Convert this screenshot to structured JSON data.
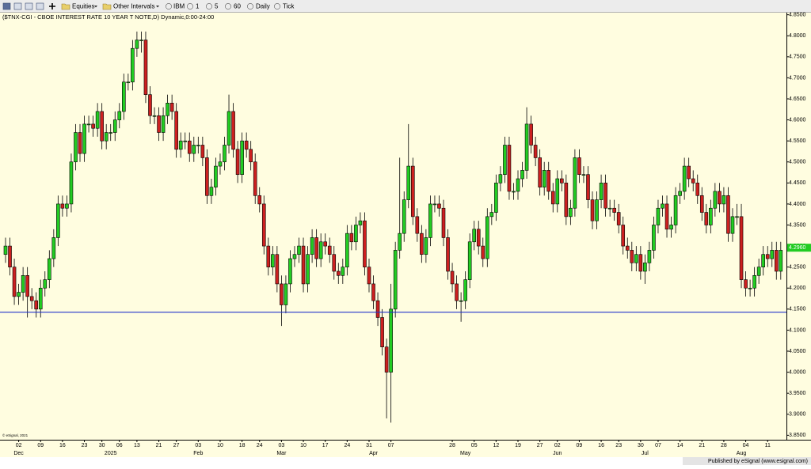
{
  "toolbar": {
    "items": [
      "Equities",
      "Other Intervals",
      "IBM",
      "1",
      "5",
      "60",
      "Daily",
      "Tick"
    ]
  },
  "footer": {
    "copyright": "© eSignal, 2021",
    "published": "Published by eSignal (www.esignal.com)"
  },
  "chart_data": {
    "type": "candlestick",
    "title": "($TNX-CGI - CBOE INTEREST RATE 10 YEAR T NOTE,D) Dynamic,0:00-24:00",
    "up_color": "#22cc22",
    "down_color": "#cc2020",
    "ylim": [
      3.845,
      4.855
    ],
    "yticks": [
      {
        "value": 3.85,
        "label": "3.8500"
      },
      {
        "value": 3.9,
        "label": "3.9000"
      },
      {
        "value": 3.95,
        "label": "3.9500"
      },
      {
        "value": 4.0,
        "label": "4.0000"
      },
      {
        "value": 4.05,
        "label": "4.0500"
      },
      {
        "value": 4.1,
        "label": "4.1000"
      },
      {
        "value": 4.15,
        "label": "4.1500"
      },
      {
        "value": 4.2,
        "label": "4.2000"
      },
      {
        "value": 4.25,
        "label": "4.2500"
      },
      {
        "value": 4.3,
        "label": "4.3000"
      },
      {
        "value": 4.35,
        "label": "4.3500"
      },
      {
        "value": 4.4,
        "label": "4.4000"
      },
      {
        "value": 4.45,
        "label": "4.4500"
      },
      {
        "value": 4.5,
        "label": "4.5000"
      },
      {
        "value": 4.55,
        "label": "4.5500"
      },
      {
        "value": 4.6,
        "label": "4.6000"
      },
      {
        "value": 4.65,
        "label": "4.6500"
      },
      {
        "value": 4.7,
        "label": "4.7000"
      },
      {
        "value": 4.75,
        "label": "4.7500"
      },
      {
        "value": 4.8,
        "label": "4.8000"
      },
      {
        "value": 4.85,
        "label": "4.8500"
      }
    ],
    "reference_line": {
      "value": 4.1425,
      "color": "#2233cc"
    },
    "last_price": {
      "value": 4.296,
      "label": "4.2960"
    },
    "categories": [
      null,
      null,
      null,
      "02",
      null,
      null,
      null,
      null,
      "09",
      null,
      null,
      null,
      null,
      "16",
      null,
      null,
      null,
      null,
      "23",
      null,
      null,
      null,
      "30",
      null,
      null,
      null,
      "06",
      null,
      null,
      null,
      "13",
      null,
      null,
      null,
      null,
      "21",
      null,
      null,
      null,
      "27",
      null,
      null,
      null,
      null,
      "03",
      null,
      null,
      null,
      null,
      "10",
      null,
      null,
      null,
      null,
      "18",
      null,
      null,
      null,
      "24",
      null,
      null,
      null,
      null,
      "03",
      null,
      null,
      null,
      null,
      "10",
      null,
      null,
      null,
      null,
      "17",
      null,
      null,
      null,
      null,
      "24",
      null,
      null,
      null,
      null,
      "31",
      null,
      null,
      null,
      null,
      "07",
      null,
      null,
      null,
      null,
      null,
      null,
      null,
      null,
      null,
      null,
      null,
      null,
      null,
      "28",
      null,
      null,
      null,
      null,
      "05",
      null,
      null,
      null,
      null,
      "12",
      null,
      null,
      null,
      null,
      "19",
      null,
      null,
      null,
      null,
      "27",
      null,
      null,
      null,
      "02",
      null,
      null,
      null,
      null,
      "09",
      null,
      null,
      null,
      null,
      "16",
      null,
      null,
      null,
      "23",
      null,
      null,
      null,
      null,
      "30",
      null,
      null,
      null,
      "07",
      null,
      null,
      null,
      null,
      "14",
      null,
      null,
      null,
      null,
      "21",
      null,
      null,
      null,
      null,
      "28",
      null,
      null,
      null,
      null,
      "04",
      null,
      null,
      null,
      null,
      "11",
      null,
      null,
      null
    ],
    "month_labels": [
      null,
      null,
      null,
      "Dec",
      null,
      null,
      null,
      null,
      null,
      null,
      null,
      null,
      null,
      null,
      null,
      null,
      null,
      null,
      null,
      null,
      null,
      null,
      null,
      null,
      "2025",
      null,
      null,
      null,
      null,
      null,
      null,
      null,
      null,
      null,
      null,
      null,
      null,
      null,
      null,
      null,
      null,
      null,
      null,
      null,
      "Feb",
      null,
      null,
      null,
      null,
      null,
      null,
      null,
      null,
      null,
      null,
      null,
      null,
      null,
      null,
      null,
      null,
      null,
      null,
      "Mar",
      null,
      null,
      null,
      null,
      null,
      null,
      null,
      null,
      null,
      null,
      null,
      null,
      null,
      null,
      null,
      null,
      null,
      null,
      null,
      null,
      "Apr",
      null,
      null,
      null,
      null,
      null,
      null,
      null,
      null,
      null,
      null,
      null,
      null,
      null,
      null,
      null,
      null,
      null,
      null,
      null,
      null,
      "May",
      null,
      null,
      null,
      null,
      null,
      null,
      null,
      null,
      null,
      null,
      null,
      null,
      null,
      null,
      null,
      null,
      null,
      null,
      null,
      null,
      "Jun",
      null,
      null,
      null,
      null,
      null,
      null,
      null,
      null,
      null,
      null,
      null,
      null,
      null,
      null,
      null,
      null,
      null,
      null,
      null,
      "Jul",
      null,
      null,
      null,
      null,
      null,
      null,
      null,
      null,
      null,
      null,
      null,
      null,
      null,
      null,
      null,
      null,
      null,
      null,
      null,
      null,
      null,
      "Aug",
      null,
      null,
      null,
      null,
      null,
      null,
      null,
      null,
      null
    ],
    "open": [
      4.28,
      4.3,
      4.25,
      4.18,
      4.19,
      4.23,
      4.18,
      4.17,
      4.15,
      4.2,
      4.22,
      4.27,
      4.32,
      4.4,
      4.39,
      4.4,
      4.5,
      4.57,
      4.52,
      4.59,
      4.59,
      4.58,
      4.62,
      4.55,
      4.57,
      4.57,
      4.6,
      4.62,
      4.69,
      4.69,
      4.77,
      4.79,
      4.79,
      4.66,
      4.61,
      4.61,
      4.57,
      4.61,
      4.64,
      4.62,
      4.53,
      4.55,
      4.55,
      4.52,
      4.54,
      4.54,
      4.51,
      4.42,
      4.44,
      4.49,
      4.5,
      4.54,
      4.62,
      4.53,
      4.47,
      4.55,
      4.53,
      4.5,
      4.42,
      4.4,
      4.3,
      4.25,
      4.28,
      4.21,
      4.16,
      4.21,
      4.27,
      4.28,
      4.3,
      4.21,
      4.28,
      4.32,
      4.27,
      4.31,
      4.3,
      4.28,
      4.24,
      4.23,
      4.25,
      4.33,
      4.31,
      4.35,
      4.36,
      4.25,
      4.21,
      4.17,
      4.13,
      4.06,
      4.0,
      4.15,
      4.29,
      4.33,
      4.41,
      4.49,
      4.37,
      4.33,
      4.28,
      4.32,
      4.4,
      4.4,
      4.39,
      4.32,
      4.24,
      4.21,
      4.17,
      4.17,
      4.22,
      4.31,
      4.34,
      4.3,
      4.27,
      4.37,
      4.38,
      4.45,
      4.47,
      4.54,
      4.43,
      4.43,
      4.46,
      4.48,
      4.59,
      4.54,
      4.51,
      4.44,
      4.48,
      4.43,
      4.4,
      4.46,
      4.45,
      4.37,
      4.39,
      4.51,
      4.47,
      4.47,
      4.41,
      4.36,
      4.41,
      4.45,
      4.39,
      4.39,
      4.38,
      4.35,
      4.3,
      4.29,
      4.26,
      4.28,
      4.24,
      4.26,
      4.29,
      4.35,
      4.39,
      4.4,
      4.34,
      4.35,
      4.42,
      4.43,
      4.49,
      4.46,
      4.45,
      4.42,
      4.38,
      4.35,
      4.39,
      4.43,
      4.4,
      4.42,
      4.33,
      4.37,
      4.37,
      4.22,
      4.2,
      4.2,
      4.23,
      4.25,
      4.28,
      4.27,
      4.29,
      4.24
    ],
    "high": [
      4.32,
      4.32,
      4.27,
      4.21,
      4.25,
      4.25,
      4.2,
      4.19,
      4.22,
      4.24,
      4.29,
      4.34,
      4.42,
      4.42,
      4.42,
      4.52,
      4.59,
      4.59,
      4.61,
      4.61,
      4.61,
      4.64,
      4.64,
      4.59,
      4.59,
      4.62,
      4.64,
      4.71,
      4.71,
      4.79,
      4.81,
      4.81,
      4.81,
      4.68,
      4.63,
      4.63,
      4.63,
      4.66,
      4.66,
      4.64,
      4.57,
      4.57,
      4.57,
      4.56,
      4.56,
      4.56,
      4.53,
      4.46,
      4.51,
      4.52,
      4.56,
      4.66,
      4.64,
      4.55,
      4.57,
      4.57,
      4.55,
      4.52,
      4.44,
      4.42,
      4.32,
      4.3,
      4.3,
      4.23,
      4.23,
      4.29,
      4.3,
      4.32,
      4.32,
      4.3,
      4.34,
      4.34,
      4.33,
      4.33,
      4.32,
      4.3,
      4.26,
      4.27,
      4.35,
      4.35,
      4.37,
      4.38,
      4.38,
      4.27,
      4.23,
      4.19,
      4.15,
      4.08,
      4.21,
      4.31,
      4.51,
      4.43,
      4.59,
      4.51,
      4.39,
      4.35,
      4.34,
      4.42,
      4.42,
      4.42,
      4.41,
      4.34,
      4.26,
      4.23,
      4.19,
      4.24,
      4.33,
      4.36,
      4.36,
      4.32,
      4.39,
      4.4,
      4.47,
      4.49,
      4.56,
      4.56,
      4.45,
      4.48,
      4.5,
      4.63,
      4.61,
      4.56,
      4.53,
      4.5,
      4.5,
      4.45,
      4.48,
      4.48,
      4.47,
      4.41,
      4.53,
      4.53,
      4.49,
      4.49,
      4.43,
      4.43,
      4.47,
      4.47,
      4.41,
      4.41,
      4.4,
      4.37,
      4.32,
      4.31,
      4.3,
      4.3,
      4.28,
      4.31,
      4.37,
      4.41,
      4.42,
      4.42,
      4.37,
      4.44,
      4.45,
      4.51,
      4.51,
      4.48,
      4.47,
      4.44,
      4.4,
      4.41,
      4.45,
      4.45,
      4.44,
      4.44,
      4.39,
      4.4,
      4.4,
      4.24,
      4.22,
      4.25,
      4.27,
      4.3,
      4.3,
      4.31,
      4.31,
      4.31
    ],
    "low": [
      4.26,
      4.23,
      4.16,
      4.16,
      4.17,
      4.13,
      4.15,
      4.13,
      4.13,
      4.18,
      4.2,
      4.25,
      4.3,
      4.37,
      4.37,
      4.38,
      4.48,
      4.5,
      4.5,
      4.57,
      4.56,
      4.56,
      4.53,
      4.53,
      4.55,
      4.55,
      4.58,
      4.6,
      4.67,
      4.67,
      4.75,
      4.76,
      4.64,
      4.59,
      4.59,
      4.55,
      4.55,
      4.59,
      4.6,
      4.51,
      4.51,
      4.53,
      4.5,
      4.5,
      4.52,
      4.49,
      4.4,
      4.4,
      4.42,
      4.47,
      4.48,
      4.52,
      4.51,
      4.45,
      4.45,
      4.51,
      4.48,
      4.4,
      4.38,
      4.28,
      4.23,
      4.23,
      4.19,
      4.11,
      4.14,
      4.19,
      4.25,
      4.26,
      4.19,
      4.19,
      4.26,
      4.25,
      4.25,
      4.28,
      4.26,
      4.22,
      4.21,
      4.21,
      4.23,
      4.29,
      4.29,
      4.33,
      4.23,
      4.19,
      4.15,
      4.11,
      4.04,
      3.89,
      3.88,
      4.13,
      4.27,
      4.31,
      4.39,
      4.35,
      4.31,
      4.26,
      4.26,
      4.3,
      4.38,
      4.37,
      4.3,
      4.22,
      4.19,
      4.15,
      4.12,
      4.15,
      4.2,
      4.29,
      4.28,
      4.25,
      4.25,
      4.35,
      4.36,
      4.43,
      4.45,
      4.41,
      4.41,
      4.41,
      4.44,
      4.46,
      4.52,
      4.49,
      4.42,
      4.42,
      4.41,
      4.38,
      4.38,
      4.43,
      4.35,
      4.35,
      4.37,
      4.45,
      4.45,
      4.39,
      4.34,
      4.34,
      4.39,
      4.37,
      4.37,
      4.36,
      4.33,
      4.28,
      4.27,
      4.24,
      4.24,
      4.22,
      4.21,
      4.24,
      4.27,
      4.33,
      4.37,
      4.32,
      4.32,
      4.33,
      4.4,
      4.41,
      4.44,
      4.43,
      4.4,
      4.36,
      4.33,
      4.33,
      4.37,
      4.38,
      4.38,
      4.31,
      4.31,
      4.35,
      4.2,
      4.18,
      4.18,
      4.18,
      4.21,
      4.23,
      4.25,
      4.25,
      4.22,
      4.22
    ],
    "close": [
      4.3,
      4.25,
      4.18,
      4.19,
      4.23,
      4.18,
      4.17,
      4.15,
      4.2,
      4.22,
      4.27,
      4.32,
      4.4,
      4.39,
      4.4,
      4.5,
      4.57,
      4.52,
      4.59,
      4.59,
      4.58,
      4.62,
      4.55,
      4.57,
      4.57,
      4.6,
      4.62,
      4.69,
      4.69,
      4.77,
      4.79,
      4.79,
      4.66,
      4.61,
      4.61,
      4.57,
      4.61,
      4.64,
      4.62,
      4.53,
      4.55,
      4.55,
      4.52,
      4.54,
      4.54,
      4.51,
      4.42,
      4.44,
      4.49,
      4.5,
      4.54,
      4.62,
      4.53,
      4.47,
      4.55,
      4.53,
      4.5,
      4.42,
      4.4,
      4.3,
      4.25,
      4.28,
      4.21,
      4.16,
      4.21,
      4.27,
      4.28,
      4.3,
      4.21,
      4.28,
      4.32,
      4.27,
      4.31,
      4.3,
      4.28,
      4.24,
      4.23,
      4.25,
      4.33,
      4.31,
      4.35,
      4.36,
      4.25,
      4.21,
      4.17,
      4.13,
      4.06,
      4.0,
      4.15,
      4.29,
      4.33,
      4.41,
      4.49,
      4.37,
      4.33,
      4.28,
      4.32,
      4.4,
      4.4,
      4.39,
      4.32,
      4.24,
      4.21,
      4.17,
      4.17,
      4.22,
      4.31,
      4.34,
      4.3,
      4.27,
      4.37,
      4.38,
      4.45,
      4.47,
      4.54,
      4.43,
      4.43,
      4.46,
      4.48,
      4.59,
      4.54,
      4.51,
      4.44,
      4.48,
      4.43,
      4.4,
      4.46,
      4.45,
      4.37,
      4.39,
      4.51,
      4.47,
      4.47,
      4.41,
      4.36,
      4.41,
      4.45,
      4.39,
      4.39,
      4.38,
      4.35,
      4.3,
      4.29,
      4.26,
      4.28,
      4.24,
      4.26,
      4.29,
      4.35,
      4.39,
      4.4,
      4.34,
      4.35,
      4.42,
      4.43,
      4.49,
      4.46,
      4.45,
      4.42,
      4.38,
      4.35,
      4.39,
      4.43,
      4.4,
      4.42,
      4.33,
      4.37,
      4.37,
      4.22,
      4.2,
      4.2,
      4.23,
      4.25,
      4.28,
      4.27,
      4.29,
      4.24,
      4.29
    ]
  }
}
